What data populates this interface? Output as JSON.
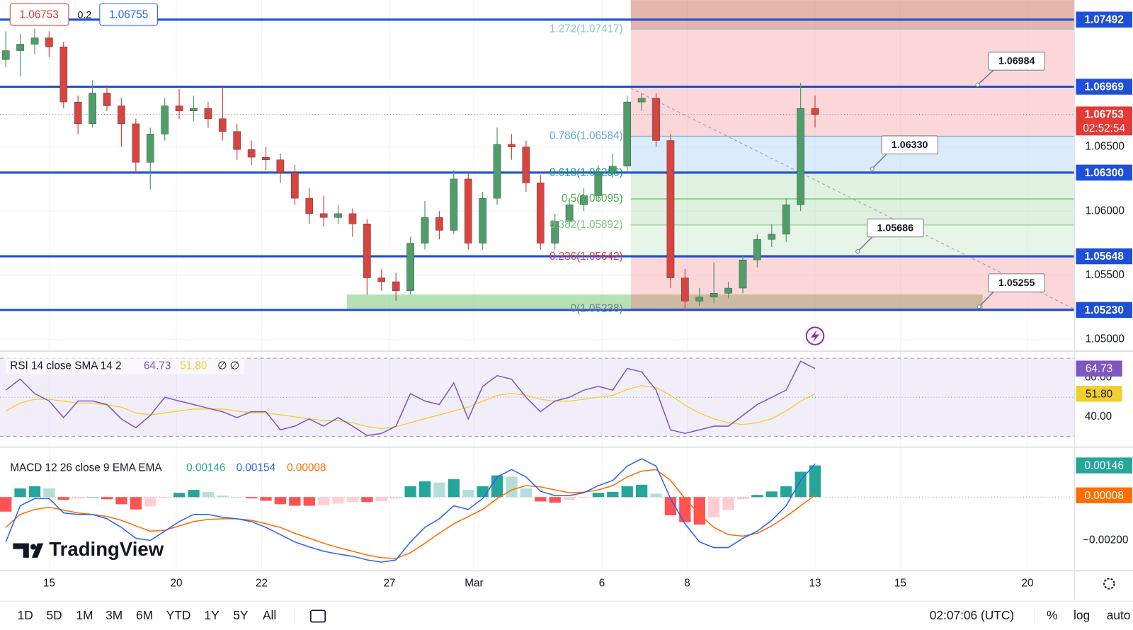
{
  "header": {
    "bid": "1.06753",
    "spread": "0.2",
    "ask": "1.06755"
  },
  "logo": "TradingView",
  "price_pane": {
    "ylim": [
      1.04915,
      1.07644
    ],
    "yticks": [
      {
        "value": 1.05,
        "label": "1.05000"
      },
      {
        "value": 1.055,
        "label": "1.05500"
      },
      {
        "value": 1.06,
        "label": "1.06000"
      },
      {
        "value": 1.065,
        "label": "1.06500"
      }
    ],
    "up_color": "#4f9d69",
    "down_color": "#d8443f",
    "candles": [
      [
        1.0718,
        1.074,
        1.0712,
        1.0725
      ],
      [
        1.0725,
        1.0738,
        1.0705,
        1.073
      ],
      [
        1.073,
        1.0742,
        1.0722,
        1.0735
      ],
      [
        1.0735,
        1.074,
        1.072,
        1.0728
      ],
      [
        1.0728,
        1.0732,
        1.068,
        1.0685
      ],
      [
        1.0685,
        1.069,
        1.066,
        1.0668
      ],
      [
        1.0668,
        1.0702,
        1.0665,
        1.0692
      ],
      [
        1.0692,
        1.0698,
        1.0678,
        1.0682
      ],
      [
        1.0682,
        1.0688,
        1.065,
        1.0668
      ],
      [
        1.0668,
        1.0672,
        1.063,
        1.0638
      ],
      [
        1.0638,
        1.0665,
        1.0617,
        1.066
      ],
      [
        1.066,
        1.0688,
        1.0655,
        1.0682
      ],
      [
        1.0682,
        1.0695,
        1.0672,
        1.0678
      ],
      [
        1.0678,
        1.069,
        1.067,
        1.068
      ],
      [
        1.068,
        1.0685,
        1.0665,
        1.0672
      ],
      [
        1.0672,
        1.0698,
        1.0655,
        1.0662
      ],
      [
        1.0662,
        1.0668,
        1.064,
        1.0648
      ],
      [
        1.0648,
        1.0655,
        1.0636,
        1.0642
      ],
      [
        1.0642,
        1.065,
        1.0632,
        1.064
      ],
      [
        1.064,
        1.0645,
        1.0622,
        1.063
      ],
      [
        1.063,
        1.0636,
        1.0605,
        1.061
      ],
      [
        1.061,
        1.0618,
        1.059,
        1.0598
      ],
      [
        1.0598,
        1.0612,
        1.0588,
        1.0595
      ],
      [
        1.0595,
        1.0605,
        1.059,
        1.0598
      ],
      [
        1.0598,
        1.0602,
        1.058,
        1.059
      ],
      [
        1.059,
        1.0594,
        1.0535,
        1.0548
      ],
      [
        1.0548,
        1.0555,
        1.0538,
        1.0545
      ],
      [
        1.0545,
        1.0552,
        1.053,
        1.0538
      ],
      [
        1.0538,
        1.058,
        1.0535,
        1.0575
      ],
      [
        1.0575,
        1.0608,
        1.057,
        1.0595
      ],
      [
        1.0595,
        1.06,
        1.0578,
        1.0585
      ],
      [
        1.0585,
        1.0632,
        1.0582,
        1.0625
      ],
      [
        1.0625,
        1.063,
        1.057,
        1.0575
      ],
      [
        1.0575,
        1.0615,
        1.057,
        1.061
      ],
      [
        1.061,
        1.0665,
        1.0605,
        1.0652
      ],
      [
        1.0652,
        1.066,
        1.064,
        1.065
      ],
      [
        1.065,
        1.0655,
        1.0615,
        1.0622
      ],
      [
        1.0622,
        1.0628,
        1.057,
        1.0575
      ],
      [
        1.0575,
        1.0598,
        1.057,
        1.0592
      ],
      [
        1.0592,
        1.061,
        1.0588,
        1.0605
      ],
      [
        1.0605,
        1.0618,
        1.06,
        1.0612
      ],
      [
        1.0612,
        1.0636,
        1.0608,
        1.063
      ],
      [
        1.063,
        1.0645,
        1.0626,
        1.0635
      ],
      [
        1.0635,
        1.069,
        1.063,
        1.0685
      ],
      [
        1.0685,
        1.0692,
        1.0678,
        1.0688
      ],
      [
        1.0688,
        1.0692,
        1.065,
        1.0655
      ],
      [
        1.0655,
        1.066,
        1.054,
        1.0548
      ],
      [
        1.0548,
        1.0555,
        1.0522,
        1.053
      ],
      [
        1.053,
        1.054,
        1.0526,
        1.0533
      ],
      [
        1.0533,
        1.056,
        1.0528,
        1.0536
      ],
      [
        1.0536,
        1.0545,
        1.0532,
        1.054
      ],
      [
        1.054,
        1.0566,
        1.0536,
        1.0562
      ],
      [
        1.0562,
        1.0582,
        1.0556,
        1.0578
      ],
      [
        1.0578,
        1.059,
        1.0572,
        1.0582
      ],
      [
        1.0582,
        1.061,
        1.0576,
        1.0605
      ],
      [
        1.0605,
        1.07,
        1.06,
        1.068
      ],
      [
        1.068,
        1.069,
        1.0665,
        1.06753
      ]
    ],
    "last": {
      "value": 1.06753,
      "label": "1.06753",
      "countdown": "02:52:54",
      "color": "#e53935"
    },
    "levels": {
      "color": "#1e4fd8",
      "items": [
        {
          "value": 1.07492,
          "label": "1.07492"
        },
        {
          "value": 1.06969,
          "label": "1.06969"
        },
        {
          "value": 1.063,
          "label": "1.06300"
        },
        {
          "value": 1.05648,
          "label": "1.05648"
        },
        {
          "value": 1.0523,
          "label": "1.05230"
        }
      ]
    },
    "callouts": [
      {
        "value": 1.06984,
        "label": "1.06984"
      },
      {
        "value": 1.0633,
        "label": "1.06330"
      },
      {
        "value": 1.05686,
        "label": "1.05686"
      },
      {
        "value": 1.05255,
        "label": "1.05255"
      }
    ],
    "fib": [
      {
        "value": 1.07417,
        "label": "1.272(1.07417)",
        "color": "#80cbc4"
      },
      {
        "value": 1.06584,
        "label": "0.786(1.06584)",
        "color": "#64a8dc"
      },
      {
        "value": 1.06296,
        "label": "0.618(1.06296)",
        "color": "#139a78"
      },
      {
        "value": 1.06095,
        "label": "0.5(1.06095)",
        "color": "#4caf50"
      },
      {
        "value": 1.05892,
        "label": "0.382(1.05892)",
        "color": "#81c784"
      },
      {
        "value": 1.05642,
        "label": "0.236(1.05642)",
        "color": "#e53935"
      },
      {
        "value": 1.05238,
        "label": "0(1.05238)",
        "color": "#787b86"
      }
    ]
  },
  "rsi_pane": {
    "title": "RSI 14 close SMA 14 2",
    "rsi_label": "64.73",
    "sma_label": "51.80",
    "extra": "∅ ∅",
    "ylim": [
      24.8,
      73.3
    ],
    "yticks": [
      {
        "value": 40,
        "label": "40.00"
      },
      {
        "value": 60,
        "label": "60.00"
      }
    ],
    "levels": [
      70,
      50,
      30
    ],
    "rsi": {
      "color": "#7e57c2",
      "values": [
        53.7,
        59.3,
        51.9,
        48.1,
        39.6,
        48.1,
        48.1,
        46.3,
        38.9,
        34.4,
        40.7,
        50,
        48.1,
        46.3,
        44.4,
        42.6,
        39.6,
        42.6,
        42.6,
        33.3,
        35.2,
        38.9,
        35.2,
        39.6,
        35.2,
        30.4,
        31.5,
        35.2,
        51.9,
        48.1,
        46.3,
        57.4,
        38.9,
        55.6,
        61.1,
        59.3,
        50,
        42.6,
        48.1,
        50,
        53.7,
        55.6,
        53.7,
        64.8,
        63,
        53.7,
        33.3,
        31.5,
        33.3,
        35.2,
        35.2,
        40.7,
        46.3,
        50,
        53.7,
        68.5,
        64.73
      ]
    },
    "sma": {
      "color": "#f2cf2c",
      "values": [
        43,
        47,
        49,
        49,
        48,
        47,
        47,
        46,
        45,
        42,
        41,
        42,
        43,
        44,
        44,
        44,
        43,
        42,
        42,
        41,
        40,
        39,
        38,
        38,
        37,
        35,
        34,
        35,
        37,
        39,
        41,
        43,
        45,
        48,
        51,
        52,
        51,
        49,
        48,
        48,
        49,
        50,
        51,
        54,
        56,
        55,
        51,
        46,
        42,
        39,
        37,
        36,
        37,
        39,
        43,
        48,
        51.8
      ]
    }
  },
  "macd_pane": {
    "title": "MACD 12 26 close 9 EMA EMA",
    "hist_label": "0.00146",
    "macd_label": "0.00154",
    "signal_label": "0.00008",
    "ylim": [
      -0.00333,
      0.00227
    ],
    "yticks": [
      {
        "value": -0.002,
        "label": "−0.00200"
      }
    ],
    "hist": {
      "color": "#26a69a",
      "neg_color": "#ff5252",
      "values": [
        -0.00067,
        0.0004,
        0.0005,
        0.0004,
        -0.00013,
        -7e-05,
        0,
        -0.0001,
        -0.00033,
        -0.00057,
        -0.00043,
        -4e-05,
        0.0002,
        0.00033,
        0.00023,
        7e-05,
        0,
        -6e-05,
        -0.00017,
        -0.00033,
        -0.0004,
        -0.0004,
        -0.00037,
        -0.0003,
        -0.00023,
        -0.00023,
        -0.0002,
        -7e-05,
        0.0005,
        0.00073,
        0.00067,
        0.00083,
        0.00033,
        0.0005,
        0.001,
        0.00094,
        0.0004,
        -0.0002,
        -0.00026,
        -0.00013,
        -3e-05,
        0.0002,
        0.00024,
        0.0005,
        0.00057,
        0.00016,
        -0.00084,
        -0.00116,
        -0.00127,
        -0.00093,
        -0.0006,
        -0.0001,
        0.0001,
        0.00026,
        0.0005,
        0.00117,
        0.00146
      ]
    },
    "macd": {
      "color": "#2962ff",
      "values": [
        -0.00207,
        -0.0004,
        -7e-05,
        -7e-05,
        -0.00073,
        -0.0008,
        -0.0008,
        -0.001,
        -0.0014,
        -0.0019,
        -0.002,
        -0.00157,
        -0.00113,
        -0.0008,
        -0.0008,
        -0.00093,
        -0.001,
        -0.00113,
        -0.0014,
        -0.00173,
        -0.00207,
        -0.0023,
        -0.0025,
        -0.00263,
        -0.00273,
        -0.0029,
        -0.003,
        -0.0029,
        -0.00207,
        -0.0014,
        -0.001,
        -0.0004,
        -0.00057,
        -7e-05,
        0.00093,
        0.00127,
        0.00093,
        0.00027,
        7e-05,
        7e-05,
        0.0002,
        0.00053,
        0.00077,
        0.00143,
        0.00177,
        0.00143,
        -7e-05,
        -0.00123,
        -0.00207,
        -0.00233,
        -0.00233,
        -0.0019,
        -0.00157,
        -0.00107,
        -0.0004,
        0.00077,
        0.00154
      ]
    },
    "signal": {
      "color": "#ff6d00",
      "values": [
        -0.0014,
        -0.0008,
        -0.00057,
        -0.00047,
        -0.0006,
        -0.00073,
        -0.0008,
        -0.0009,
        -0.00107,
        -0.00133,
        -0.00157,
        -0.00153,
        -0.00133,
        -0.00113,
        -0.00103,
        -0.001,
        -0.001,
        -0.00107,
        -0.00123,
        -0.0014,
        -0.00167,
        -0.0019,
        -0.00213,
        -0.00233,
        -0.0025,
        -0.00267,
        -0.0028,
        -0.00283,
        -0.00257,
        -0.00213,
        -0.00167,
        -0.00123,
        -0.0009,
        -0.00057,
        -7e-05,
        0.00033,
        0.00053,
        0.00047,
        0.00033,
        0.0002,
        0.00023,
        0.00033,
        0.00053,
        0.00093,
        0.0012,
        0.00127,
        0.00077,
        -7e-05,
        -0.0008,
        -0.0014,
        -0.00173,
        -0.0018,
        -0.00167,
        -0.00133,
        -0.0009,
        -0.0004,
        8e-05
      ]
    }
  },
  "x_axis": {
    "labels": [
      "15",
      "20",
      "22",
      "27",
      "Mar",
      "6",
      "8",
      "13",
      "15",
      "20"
    ]
  },
  "toolbar": {
    "ranges": [
      "1D",
      "5D",
      "1M",
      "3M",
      "6M",
      "YTD",
      "1Y",
      "5Y",
      "All"
    ],
    "clock": "02:07:06 (UTC)",
    "percent": "%",
    "log": "log",
    "auto": "auto"
  }
}
